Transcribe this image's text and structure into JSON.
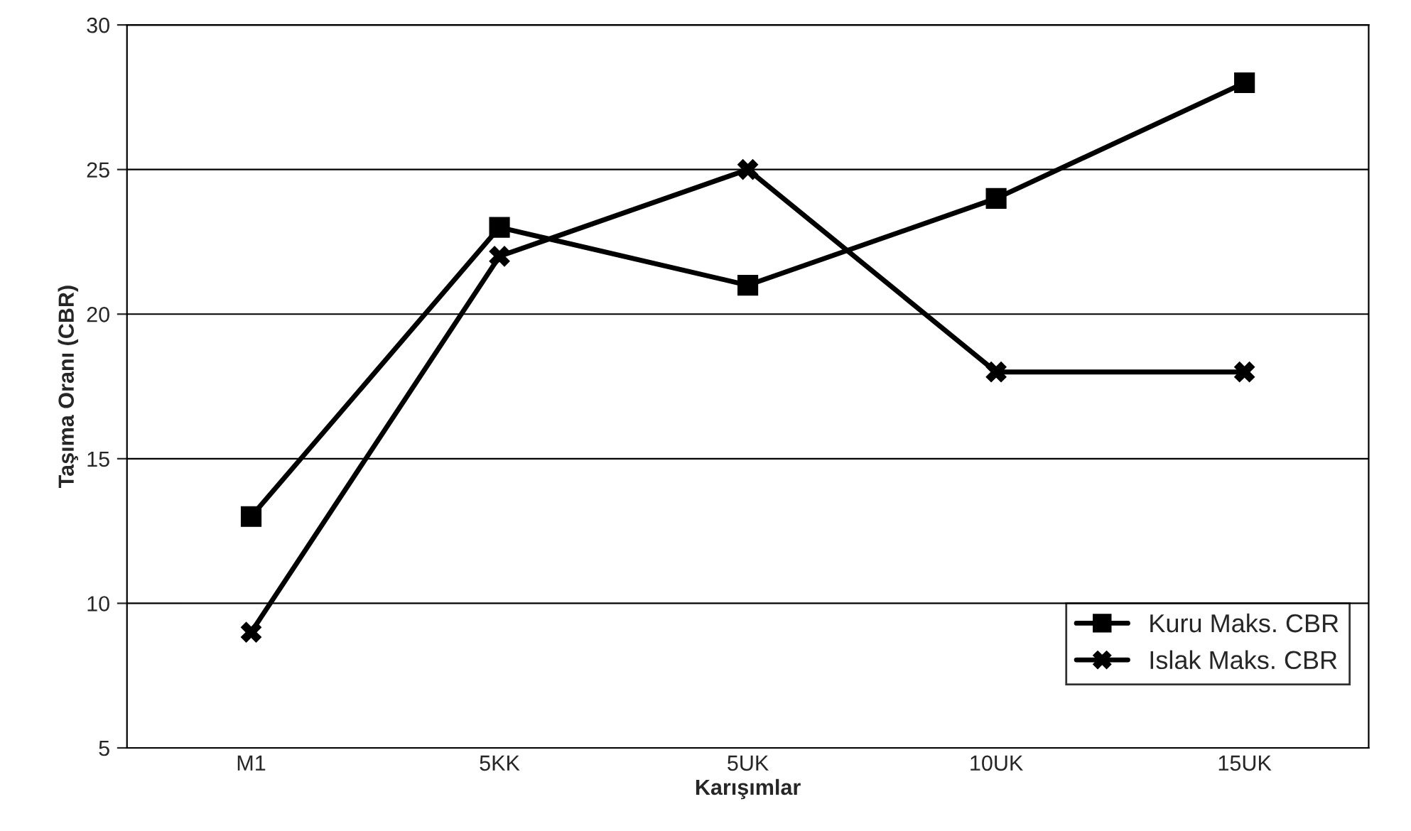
{
  "chart_data": {
    "type": "line",
    "xlabel": "Karışımlar",
    "ylabel": "Taşıma Oranı (CBR)",
    "categories": [
      "M1",
      "5KK",
      "5UK",
      "10UK",
      "15UK"
    ],
    "series": [
      {
        "name": "Kuru Maks. CBR",
        "color": "#000000",
        "marker": "square",
        "values": [
          13,
          23,
          21,
          24,
          28
        ]
      },
      {
        "name": "Islak Maks. CBR",
        "color": "#000000",
        "marker": "cross",
        "values": [
          9,
          22,
          25,
          18,
          18
        ]
      }
    ],
    "ylim": [
      5,
      30
    ],
    "yticks": [
      5,
      10,
      15,
      20,
      25,
      30
    ],
    "grid": "y",
    "legend": "bottom right",
    "line_style": "solid"
  }
}
